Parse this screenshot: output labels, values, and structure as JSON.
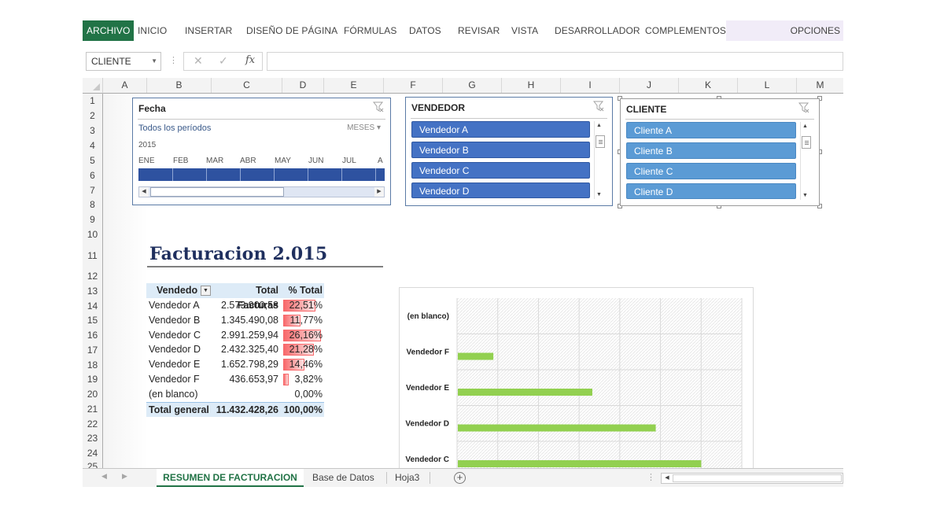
{
  "ribbon": {
    "tabs": [
      "ARCHIVO",
      "INICIO",
      "INSERTAR",
      "DISEÑO DE PÁGINA",
      "FÓRMULAS",
      "DATOS",
      "REVISAR",
      "VISTA",
      "DESARROLLADOR",
      "COMPLEMENTOS"
    ],
    "options": "OPCIONES",
    "active_color": "#217346"
  },
  "formula_bar": {
    "name_box": "CLIENTE",
    "cancel_icon": "✕",
    "enter_icon": "✓",
    "fx_label": "fx",
    "value": ""
  },
  "grid": {
    "columns": [
      "A",
      "B",
      "C",
      "D",
      "E",
      "F",
      "G",
      "H",
      "I",
      "J",
      "K",
      "L",
      "M"
    ],
    "rows": [
      "1",
      "2",
      "3",
      "4",
      "5",
      "6",
      "7",
      "8",
      "9",
      "10",
      "11",
      "12",
      "13",
      "14",
      "15",
      "16",
      "17",
      "18",
      "19",
      "20",
      "21",
      "22",
      "23",
      "24",
      "25"
    ]
  },
  "slicers": {
    "fecha": {
      "title": "Fecha",
      "periods": "Todos los períodos",
      "level": "MESES",
      "year": "2015",
      "months": [
        "ENE",
        "FEB",
        "MAR",
        "ABR",
        "MAY",
        "JUN",
        "JUL",
        "A"
      ],
      "fill_color": "#2e52a0"
    },
    "vendedor": {
      "title": "VENDEDOR",
      "items": [
        "Vendedor A",
        "Vendedor B",
        "Vendedor C",
        "Vendedor D"
      ],
      "item_color": "#4472c4"
    },
    "cliente": {
      "title": "CLIENTE",
      "items": [
        "Cliente A",
        "Cliente B",
        "Cliente C",
        "Cliente D"
      ],
      "item_color": "#5b9bd5"
    }
  },
  "report": {
    "title": "Facturacion 2.015"
  },
  "pivot": {
    "headers": [
      "Vendedo",
      "Total Facturas",
      "% Total"
    ],
    "rows": [
      {
        "name": "Vendedor A",
        "total": "2.573.900,58",
        "pct": "22,51%",
        "pct_value": 22.51
      },
      {
        "name": "Vendedor B",
        "total": "1.345.490,08",
        "pct": "11,77%",
        "pct_value": 11.77
      },
      {
        "name": "Vendedor C",
        "total": "2.991.259,94",
        "pct": "26,16%",
        "pct_value": 26.16
      },
      {
        "name": "Vendedor D",
        "total": "2.432.325,40",
        "pct": "21,28%",
        "pct_value": 21.28
      },
      {
        "name": "Vendedor E",
        "total": "1.652.798,29",
        "pct": "14,46%",
        "pct_value": 14.46
      },
      {
        "name": "Vendedor F",
        "total": "436.653,97",
        "pct": "3,82%",
        "pct_value": 3.82
      },
      {
        "name": "(en blanco)",
        "total": "",
        "pct": "0,00%",
        "pct_value": 0
      }
    ],
    "total": {
      "name": "Total general",
      "total": "11.432.428,26",
      "pct": "100,00%"
    },
    "header_color": "#ddebf7",
    "databar_color": "#f8696b"
  },
  "chart_data": {
    "type": "bar",
    "orientation": "horizontal",
    "categories": [
      "(en blanco)",
      "Vendedor F",
      "Vendedor E",
      "Vendedor D",
      "Vendedor C"
    ],
    "values": [
      0,
      436653.97,
      1652798.29,
      2432325.4,
      2991259.94
    ],
    "xlim": [
      0,
      3500000
    ],
    "grid": true,
    "bar_color": "#92d050"
  },
  "sheet_tabs": {
    "tabs": [
      "RESUMEN DE FACTURACION",
      "Base de Datos",
      "Hoja3"
    ],
    "active": 0,
    "add_icon": "+"
  }
}
